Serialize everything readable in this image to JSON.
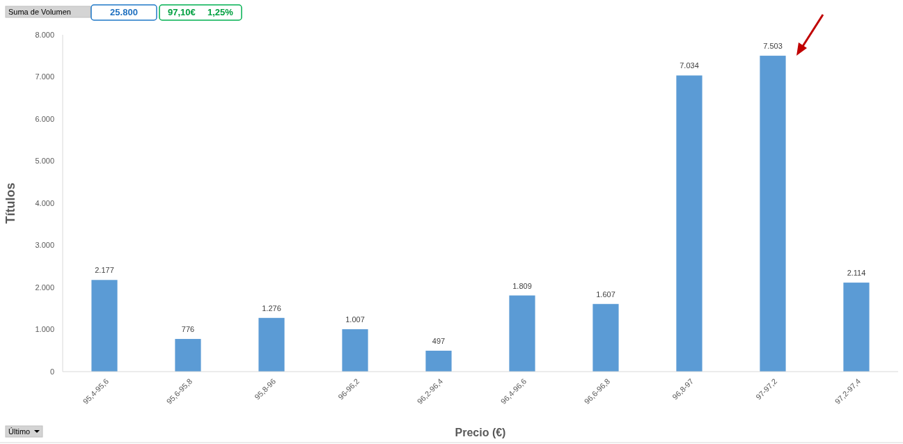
{
  "chart_data": {
    "type": "bar",
    "xlabel": "Precio (€)",
    "ylabel": "Títulos",
    "categories": [
      "95,4-95,6",
      "95,6-95,8",
      "95,8-96",
      "96-96,2",
      "96,2-96,4",
      "96,4-96,6",
      "96,6-96,8",
      "96,8-97",
      "97-97,2",
      "97,2-97,4"
    ],
    "values": [
      2177,
      776,
      1276,
      1007,
      497,
      1809,
      1607,
      7034,
      7503,
      2114
    ],
    "value_labels": [
      "2.177",
      "776",
      "1.276",
      "1.007",
      "497",
      "1.809",
      "1.607",
      "7.034",
      "7.503",
      "2.114"
    ],
    "color": "#5b9bd5",
    "ylim": [
      0,
      8000
    ],
    "yticks": [
      0,
      {
        "value": 1000,
        "label": "1.000"
      },
      {
        "value": 2000,
        "label": "2.000"
      },
      {
        "value": 3000,
        "label": "3.000"
      },
      {
        "value": 4000,
        "label": "4.000"
      },
      {
        "value": 5000,
        "label": "5.000"
      },
      {
        "value": 6000,
        "label": "6.000"
      },
      {
        "value": 7000,
        "label": "7.000"
      },
      {
        "value": 8000,
        "label": "8.000"
      }
    ],
    "grid": false,
    "annotations": [
      "Suma de Volumen",
      "25.800",
      "97,10€",
      "1,25%",
      "Último"
    ]
  }
}
